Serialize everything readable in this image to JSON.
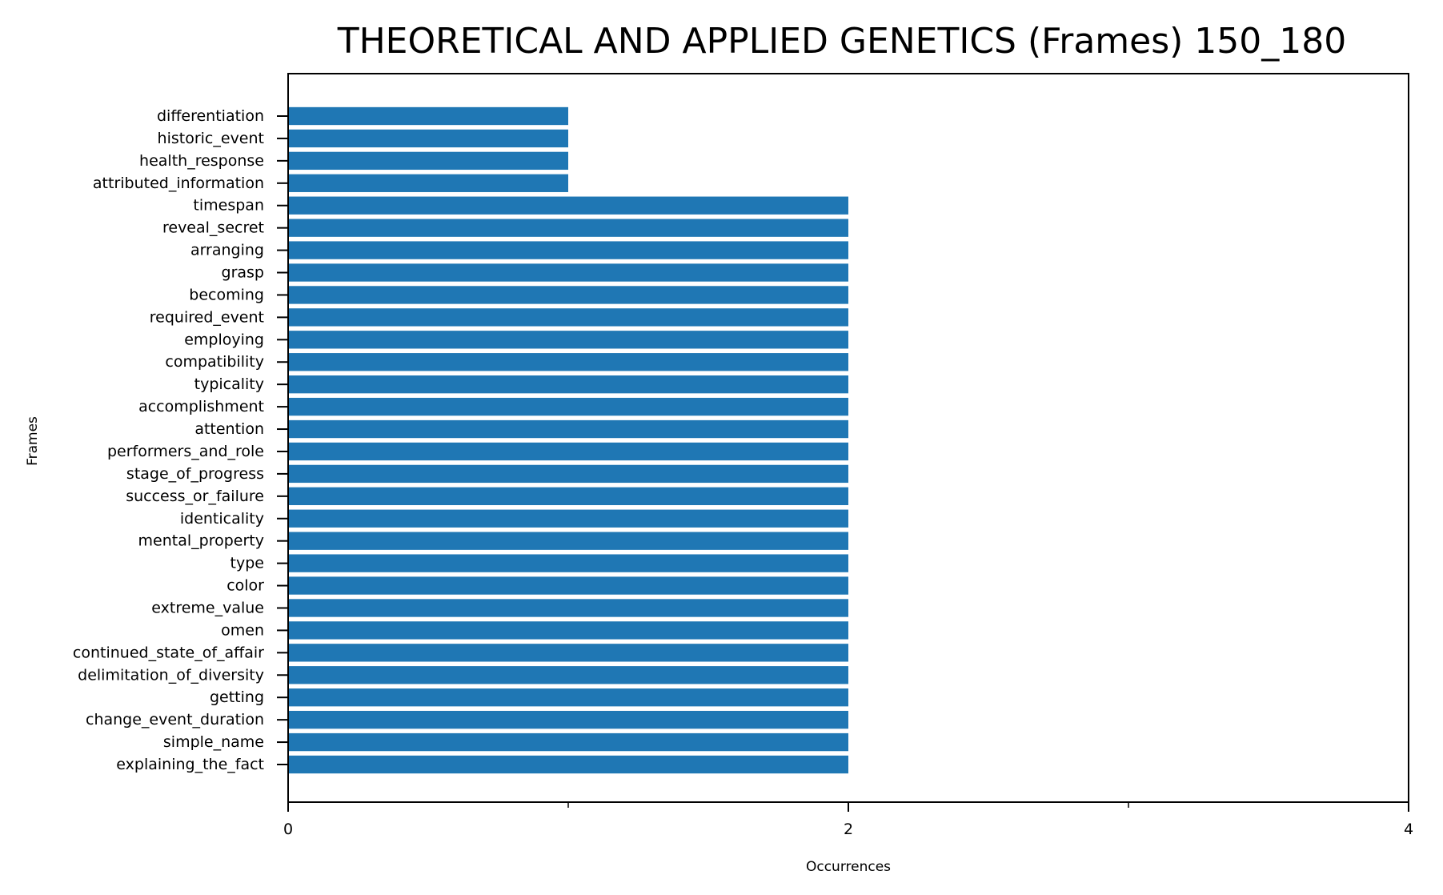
{
  "chart_data": {
    "type": "bar",
    "orientation": "horizontal",
    "title": "THEORETICAL AND APPLIED GENETICS (Frames) 150_180",
    "xlabel": "Occurrences",
    "ylabel": "Frames",
    "xlim": [
      0,
      4
    ],
    "x_ticks": [
      0,
      2,
      4
    ],
    "x_minor_ticks": [
      1,
      3
    ],
    "grid": false,
    "bar_color": "#1f77b4",
    "categories": [
      "differentiation",
      "historic_event",
      "health_response",
      "attributed_information",
      "timespan",
      "reveal_secret",
      "arranging",
      "grasp",
      "becoming",
      "required_event",
      "employing",
      "compatibility",
      "typicality",
      "accomplishment",
      "attention",
      "performers_and_role",
      "stage_of_progress",
      "success_or_failure",
      "identicality",
      "mental_property",
      "type",
      "color",
      "extreme_value",
      "omen",
      "continued_state_of_affair",
      "delimitation_of_diversity",
      "getting",
      "change_event_duration",
      "simple_name",
      "explaining_the_fact"
    ],
    "values": [
      1,
      1,
      1,
      1,
      2,
      2,
      2,
      2,
      2,
      2,
      2,
      2,
      2,
      2,
      2,
      2,
      2,
      2,
      2,
      2,
      2,
      2,
      2,
      2,
      2,
      2,
      2,
      2,
      2,
      2
    ]
  }
}
